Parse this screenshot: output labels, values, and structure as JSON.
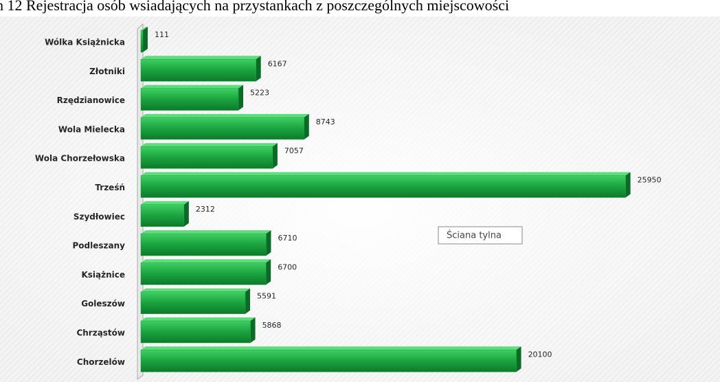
{
  "chart_data": {
    "type": "bar",
    "orientation": "horizontal",
    "title": "h 12 Rejestracja osób wsiadających na przystankach z poszczególnych miejscowości",
    "annotation": "Ściana tylna",
    "categories": [
      "Wólka Książnicka",
      "Złotniki",
      "Rzędzianowice",
      "Wola Mielecka",
      "Wola Chorzełowska",
      "Trześń",
      "Szydłowiec",
      "Podleszany",
      "Książnice",
      "Goleszów",
      "Chrząstów",
      "Chorzelów"
    ],
    "values": [
      111,
      6167,
      5223,
      8743,
      7057,
      25950,
      2312,
      6710,
      6700,
      5591,
      5868,
      20100
    ],
    "color": "#1aa33f",
    "xlim": [
      0,
      26000
    ]
  }
}
